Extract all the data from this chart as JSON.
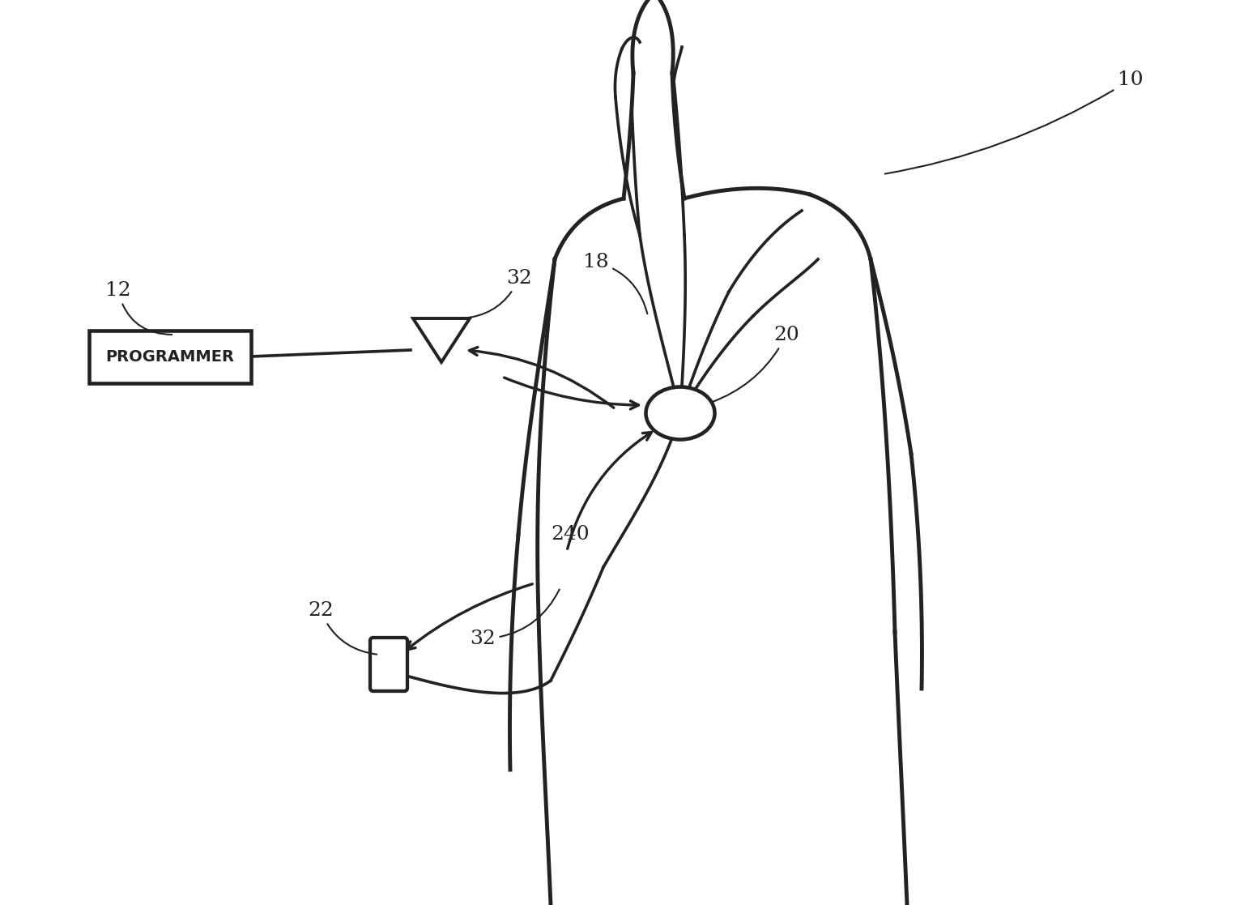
{
  "bg_color": "#ffffff",
  "line_color": "#222222",
  "line_width": 2.2,
  "programmer_label": "PROGRAMMER",
  "label_fontsize": 18
}
